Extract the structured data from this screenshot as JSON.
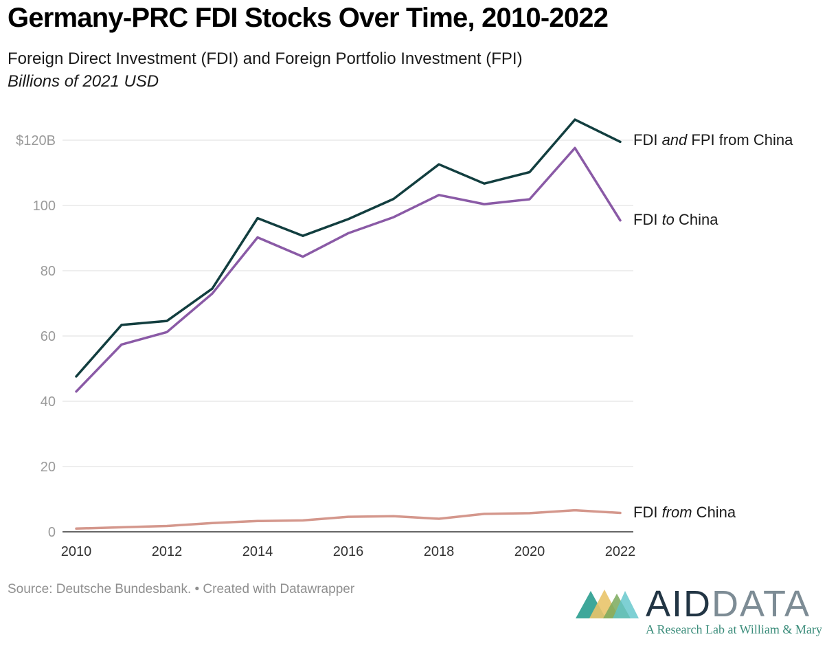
{
  "header": {
    "title": "Germany-PRC FDI Stocks Over Time, 2010-2022",
    "subtitle": "Foreign Direct Investment (FDI) and Foreign Portfolio Investment (FPI)",
    "units": "Billions of 2021 USD"
  },
  "series_labels": {
    "fdi_fpi_from": {
      "prefix": "FDI ",
      "emph": "and",
      "suffix": " FPI from China"
    },
    "fdi_to": {
      "prefix": "FDI ",
      "emph": "to",
      "suffix": " China"
    },
    "fdi_from": {
      "prefix": "FDI ",
      "emph": "from",
      "suffix": " China"
    }
  },
  "footer": {
    "source": "Source: Deutsche Bundesbank. • Created with Datawrapper"
  },
  "logo": {
    "word_dark": "AID",
    "word_light": "DATA",
    "tagline": "A Research Lab at William & Mary"
  },
  "colors": {
    "fdi_fpi_from": "#123e3f",
    "fdi_to": "#8a5aa6",
    "fdi_from": "#d4978c",
    "grid": "#dddddd",
    "axis": "#333333"
  },
  "chart_data": {
    "type": "line",
    "x": [
      2010,
      2011,
      2012,
      2013,
      2014,
      2015,
      2016,
      2017,
      2018,
      2019,
      2020,
      2021,
      2022
    ],
    "xticks": [
      "2010",
      "2012",
      "2014",
      "2016",
      "2018",
      "2020",
      "2022"
    ],
    "yticks": [
      "0",
      "20",
      "40",
      "60",
      "80",
      "100",
      "$120B"
    ],
    "ylim": [
      0,
      120
    ],
    "grid": true,
    "legend": "direct labels at line ends",
    "series": [
      {
        "key": "fdi_fpi_from",
        "name": "FDI and FPI from China",
        "values": [
          47.6,
          63.4,
          64.6,
          74.5,
          96.1,
          90.7,
          95.8,
          102.0,
          112.6,
          106.7,
          110.2,
          126.3,
          119.5
        ]
      },
      {
        "key": "fdi_to",
        "name": "FDI to China",
        "values": [
          43.0,
          57.4,
          61.2,
          73.0,
          90.2,
          84.3,
          91.5,
          96.4,
          103.2,
          100.4,
          101.9,
          117.6,
          95.4
        ]
      },
      {
        "key": "fdi_from",
        "name": "FDI from China",
        "values": [
          1.0,
          1.4,
          1.8,
          2.7,
          3.3,
          3.5,
          4.6,
          4.8,
          4.0,
          5.5,
          5.7,
          6.6,
          5.8
        ]
      }
    ]
  }
}
